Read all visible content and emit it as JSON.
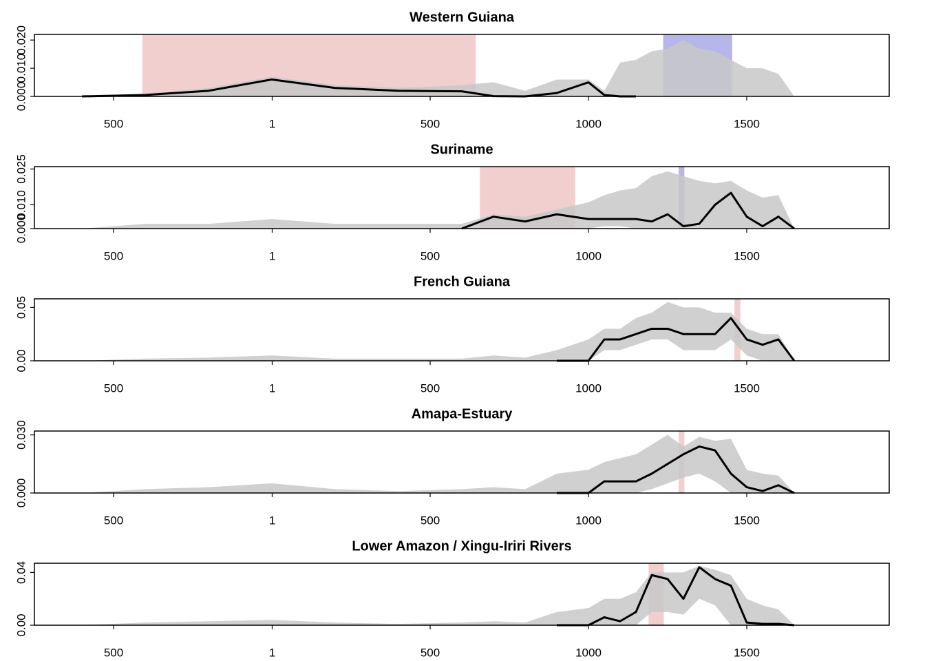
{
  "chart_data": [
    {
      "type": "line",
      "title": "Western Guiana",
      "x": [
        -600,
        -400,
        -200,
        0,
        200,
        400,
        600,
        700,
        800,
        900,
        1000,
        1050,
        1100,
        1150,
        1200,
        1250,
        1300,
        1350,
        1400,
        1450,
        1500,
        1550,
        1600,
        1650
      ],
      "series": [
        {
          "color": "#000000",
          "values": [
            0,
            0.0005,
            0.002,
            0.006,
            0.003,
            0.002,
            0.0018,
            0.0001,
            0,
            0.0012,
            0.005,
            0.0005,
            0,
            0,
            null,
            null,
            null,
            null,
            null,
            null,
            null,
            null,
            null,
            null
          ]
        }
      ],
      "band_upper": [
        0,
        0.001,
        0.003,
        0.007,
        0.004,
        0.003,
        0.004,
        0.005,
        0.002,
        0.006,
        0.006,
        0.002,
        0.012,
        0.013,
        0.016,
        0.017,
        0.02,
        0.017,
        0.016,
        0.013,
        0.01,
        0.01,
        0.008,
        0
      ],
      "band_lower": [
        0,
        0,
        0,
        0,
        0,
        0,
        0,
        0,
        0,
        0,
        0,
        0,
        0,
        0,
        0,
        0,
        0,
        0,
        0,
        0,
        0,
        0,
        0,
        0
      ],
      "band_color": "#c8c8c8",
      "spans": [
        {
          "from": -409,
          "to": 644,
          "color": "#e9b5b5"
        },
        {
          "from": 1236,
          "to": 1454,
          "color": "#8f8fe0"
        }
      ],
      "xlim": [
        -750,
        1950
      ],
      "xticks": [
        {
          "value": -500,
          "label": "500"
        },
        1,
        500,
        1000,
        1500
      ],
      "ylim": [
        0,
        0.022
      ],
      "yticks": [
        {
          "value": 0,
          "label": "0.000"
        },
        {
          "value": 0.01,
          "label": "0.010"
        },
        {
          "value": 0.02,
          "label": "0.020"
        }
      ]
    },
    {
      "type": "line",
      "title": "Suriname",
      "x": [
        -600,
        -400,
        -200,
        0,
        200,
        400,
        600,
        700,
        800,
        900,
        1000,
        1050,
        1100,
        1150,
        1200,
        1250,
        1300,
        1350,
        1400,
        1450,
        1500,
        1550,
        1600,
        1650
      ],
      "series": [
        {
          "color": "#000000",
          "values": [
            null,
            null,
            null,
            null,
            null,
            null,
            0,
            0.005,
            0.003,
            0.006,
            0.004,
            0.004,
            0.004,
            0.004,
            0.003,
            0.006,
            0.001,
            0.002,
            0.01,
            0.015,
            0.005,
            0.001,
            0.005,
            0
          ]
        }
      ],
      "band_upper": [
        0,
        0.002,
        0.002,
        0.004,
        0.002,
        0.002,
        0.002,
        0.006,
        0.005,
        0.008,
        0.011,
        0.014,
        0.016,
        0.017,
        0.022,
        0.024,
        0.022,
        0.02,
        0.019,
        0.02,
        0.016,
        0.013,
        0.014,
        0
      ],
      "band_lower": [
        0,
        0,
        0,
        0,
        0,
        0,
        0,
        0,
        0,
        0,
        0,
        0.001,
        0.001,
        0,
        0,
        0,
        0,
        0,
        0,
        0,
        0,
        0,
        0,
        0
      ],
      "band_color": "#c8c8c8",
      "spans": [
        {
          "from": 657,
          "to": 958,
          "color": "#e9b5b5"
        },
        {
          "from": 1285,
          "to": 1303,
          "color": "#8f8fe0"
        }
      ],
      "xlim": [
        -750,
        1950
      ],
      "xticks": [
        {
          "value": -500,
          "label": "500"
        },
        1,
        500,
        1000,
        1500
      ],
      "ylim": [
        0,
        0.026
      ],
      "yticks": [
        {
          "value": 0,
          "label": "0.000"
        },
        {
          "value": 0.01,
          "label": "0.010"
        },
        {
          "value": 0.025,
          "label": "0.025"
        }
      ]
    },
    {
      "type": "line",
      "title": "French Guiana",
      "x": [
        -600,
        -400,
        -200,
        0,
        200,
        400,
        600,
        700,
        800,
        900,
        1000,
        1050,
        1100,
        1150,
        1200,
        1250,
        1300,
        1350,
        1400,
        1450,
        1500,
        1550,
        1600,
        1650
      ],
      "series": [
        {
          "color": "#000000",
          "values": [
            null,
            null,
            null,
            null,
            null,
            null,
            null,
            null,
            null,
            0,
            0,
            0.02,
            0.02,
            0.025,
            0.03,
            0.03,
            0.025,
            0.025,
            0.025,
            0.04,
            0.02,
            0.015,
            0.02,
            0
          ]
        }
      ],
      "band_upper": [
        0,
        0.002,
        0.003,
        0.005,
        0.002,
        0.002,
        0.002,
        0.005,
        0.003,
        0.01,
        0.02,
        0.03,
        0.03,
        0.04,
        0.045,
        0.055,
        0.05,
        0.05,
        0.045,
        0.045,
        0.03,
        0.025,
        0.025,
        0
      ],
      "band_lower": [
        0,
        0,
        0,
        0,
        0,
        0,
        0,
        0,
        0,
        0,
        0,
        0.01,
        0.01,
        0.015,
        0.02,
        0.02,
        0.01,
        0.01,
        0.01,
        0.02,
        0.005,
        0,
        0,
        0
      ],
      "band_color": "#c8c8c8",
      "spans": [
        {
          "from": 1461,
          "to": 1480,
          "color": "#e9b5b5"
        }
      ],
      "xlim": [
        -750,
        1950
      ],
      "xticks": [
        {
          "value": -500,
          "label": "500"
        },
        1,
        500,
        1000,
        1500
      ],
      "ylim": [
        0,
        0.058
      ],
      "yticks": [
        {
          "value": 0,
          "label": "0.00"
        },
        {
          "value": 0.05,
          "label": "0.05"
        }
      ]
    },
    {
      "type": "line",
      "title": "Amapa-Estuary",
      "x": [
        -600,
        -400,
        -200,
        0,
        200,
        400,
        600,
        700,
        800,
        900,
        1000,
        1050,
        1100,
        1150,
        1200,
        1250,
        1300,
        1350,
        1400,
        1450,
        1500,
        1550,
        1600,
        1650
      ],
      "series": [
        {
          "color": "#000000",
          "values": [
            null,
            null,
            null,
            null,
            null,
            null,
            null,
            null,
            null,
            0,
            0,
            0.006,
            0.006,
            0.006,
            0.01,
            0.015,
            0.02,
            0.024,
            0.022,
            0.01,
            0.003,
            0.001,
            0.004,
            0
          ]
        }
      ],
      "band_upper": [
        0,
        0.002,
        0.003,
        0.005,
        0.002,
        0.001,
        0.002,
        0.003,
        0.002,
        0.01,
        0.012,
        0.016,
        0.018,
        0.02,
        0.025,
        0.03,
        0.024,
        0.029,
        0.027,
        0.028,
        0.012,
        0.01,
        0.009,
        0
      ],
      "band_lower": [
        0,
        0,
        0,
        0,
        0,
        0,
        0,
        0,
        0,
        0,
        0,
        0,
        0,
        0,
        0.002,
        0.005,
        0.008,
        0.01,
        0.006,
        0,
        0,
        0,
        0,
        0
      ],
      "band_color": "#c8c8c8",
      "spans": [
        {
          "from": 1285,
          "to": 1303,
          "color": "#e9b5b5"
        }
      ],
      "xlim": [
        -750,
        1950
      ],
      "xticks": [
        {
          "value": -500,
          "label": "500"
        },
        1,
        500,
        1000,
        1500
      ],
      "ylim": [
        0,
        0.032
      ],
      "yticks": [
        {
          "value": 0,
          "label": "0.000"
        },
        {
          "value": 0.03,
          "label": "0.030"
        }
      ]
    },
    {
      "type": "line",
      "title": "Lower Amazon / Xingu-Iriri Rivers",
      "x": [
        -600,
        -400,
        -200,
        0,
        200,
        400,
        600,
        700,
        800,
        900,
        1000,
        1050,
        1100,
        1150,
        1200,
        1250,
        1300,
        1350,
        1400,
        1450,
        1500,
        1550,
        1600,
        1650
      ],
      "series": [
        {
          "color": "#000000",
          "values": [
            null,
            null,
            null,
            null,
            null,
            null,
            null,
            null,
            null,
            0,
            0,
            0.006,
            0.003,
            0.01,
            0.038,
            0.035,
            0.02,
            0.044,
            0.035,
            0.03,
            0.002,
            0.001,
            0.001,
            0
          ]
        }
      ],
      "band_upper": [
        0,
        0.002,
        0.003,
        0.004,
        0.002,
        0.001,
        0.002,
        0.003,
        0.002,
        0.01,
        0.013,
        0.02,
        0.02,
        0.025,
        0.04,
        0.04,
        0.04,
        0.045,
        0.042,
        0.038,
        0.02,
        0.015,
        0.012,
        0
      ],
      "band_lower": [
        0,
        0,
        0,
        0,
        0,
        0,
        0,
        0,
        0,
        0,
        0,
        0,
        0,
        0,
        0.01,
        0.01,
        0.008,
        0.02,
        0.015,
        0,
        0,
        0,
        0,
        0
      ],
      "band_color": "#c8c8c8",
      "spans": [
        {
          "from": 1190,
          "to": 1238,
          "color": "#e9b5b5"
        }
      ],
      "xlim": [
        -750,
        1950
      ],
      "xticks": [
        {
          "value": -500,
          "label": "500"
        },
        1,
        500,
        1000,
        1500
      ],
      "ylim": [
        0,
        0.047
      ],
      "yticks": [
        {
          "value": 0,
          "label": "0.00"
        },
        {
          "value": 0.04,
          "label": "0.04"
        }
      ]
    }
  ]
}
